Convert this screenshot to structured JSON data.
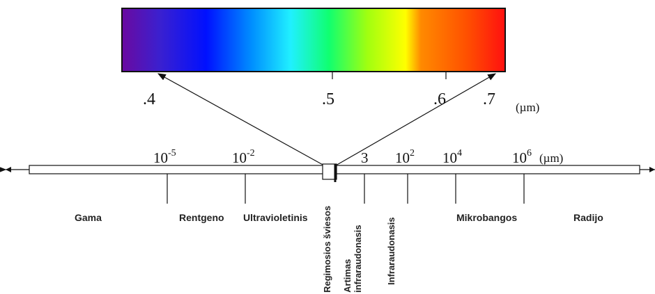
{
  "visible_scale": {
    "ticks": [
      ".4",
      ".5",
      ".6",
      ".7"
    ],
    "unit": "(µm)"
  },
  "axis": {
    "ticks": [
      {
        "base": "10",
        "exp": "-5"
      },
      {
        "base": "10",
        "exp": "-2"
      },
      {
        "label": "3"
      },
      {
        "base": "10",
        "exp": "2"
      },
      {
        "base": "10",
        "exp": "4"
      },
      {
        "base": "10",
        "exp": "6"
      }
    ],
    "unit": "(µm)"
  },
  "regions": [
    "Gama",
    "Rentgeno",
    "Ultravioletinis",
    "Regimosios šviesos",
    "Artimas",
    "infraraudonasis",
    "Infraraudonasis",
    "Mikrobangos",
    "Radijo"
  ]
}
